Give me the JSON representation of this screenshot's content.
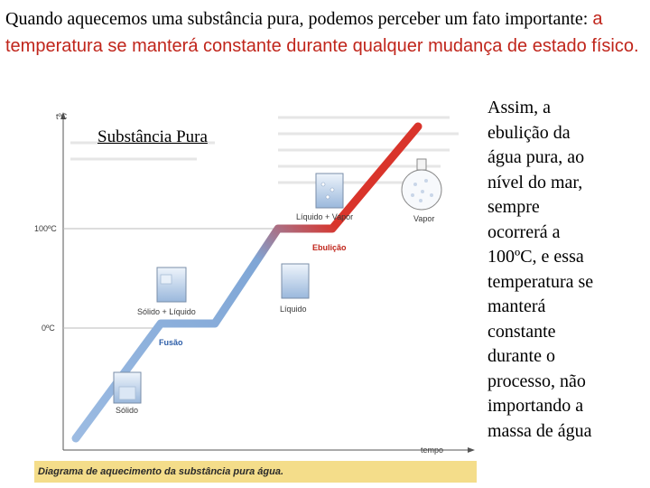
{
  "intro": {
    "part1": "Quando aquecemos uma substância pura, podemos perceber um fato importante: ",
    "part2": "a temperatura se manterá constante durante qualquer mudança de estado físico."
  },
  "side_text": [
    "Assim, a",
    "ebulição da",
    "água pura, ao",
    "nível do mar,",
    "sempre",
    "ocorrerá a",
    "100ºC, e essa",
    "temperatura se",
    "manterá",
    "constante",
    "durante o",
    "processo, não",
    "importando a",
    "massa de água"
  ],
  "figure": {
    "title": "Substância Pura",
    "y_axis_label": "tºC",
    "x_axis_label": "tempo",
    "tick_100": "100ºC",
    "tick_0": "0ºC",
    "phase_labels": {
      "solid": "Sólido",
      "solid_liquid": "Sólido + Líquido",
      "liquid": "Líquido",
      "liquid_vapor": "Líquido + Vapor",
      "vapor": "Vapor"
    },
    "process_labels": {
      "fusion": "Fusão",
      "boiling": "Ebulição"
    },
    "caption": "Diagrama de aquecimento da substância pura água.",
    "colors": {
      "curve_blue": "#7fa6d6",
      "curve_red": "#d9342b",
      "caption_bar": "#f4dd8a"
    }
  }
}
